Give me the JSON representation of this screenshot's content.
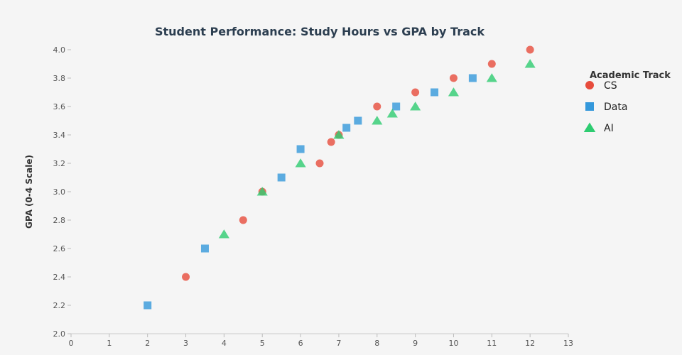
{
  "chart_data": {
    "type": "scatter",
    "title": "Student Performance: Study Hours vs GPA by Track",
    "xlabel": "",
    "ylabel": "GPA (0-4 Scale)",
    "xlim": [
      0,
      13
    ],
    "ylim": [
      2.0,
      4.0
    ],
    "xticks": [
      "0",
      "1",
      "2",
      "3",
      "4",
      "5",
      "6",
      "7",
      "8",
      "9",
      "10",
      "11",
      "12",
      "13"
    ],
    "yticks": [
      "2.0",
      "2.2",
      "2.4",
      "2.6",
      "2.8",
      "3.0",
      "3.2",
      "3.4",
      "3.6",
      "3.8",
      "4.0"
    ],
    "grid": false,
    "legend": {
      "title": "Academic Track",
      "position": "right"
    },
    "series": [
      {
        "name": "CS",
        "marker": "circle",
        "color": "#e74c3c",
        "x": [
          3,
          4.5,
          5,
          6.5,
          6.8,
          7,
          8,
          9,
          10,
          11,
          12
        ],
        "y": [
          2.4,
          2.8,
          3.0,
          3.2,
          3.35,
          3.4,
          3.6,
          3.7,
          3.8,
          3.9,
          4.0
        ]
      },
      {
        "name": "Data",
        "marker": "square",
        "color": "#3498db",
        "x": [
          2,
          3.5,
          5.5,
          6,
          7.2,
          7.5,
          8.5,
          9.5,
          10.5
        ],
        "y": [
          2.2,
          2.6,
          3.1,
          3.3,
          3.45,
          3.5,
          3.6,
          3.7,
          3.8
        ]
      },
      {
        "name": "AI",
        "marker": "triangle",
        "color": "#2ecc71",
        "x": [
          4,
          5,
          6,
          7,
          8,
          8.4,
          9,
          10,
          11,
          12
        ],
        "y": [
          2.7,
          3.0,
          3.2,
          3.4,
          3.5,
          3.55,
          3.6,
          3.7,
          3.8,
          3.9
        ]
      }
    ]
  }
}
